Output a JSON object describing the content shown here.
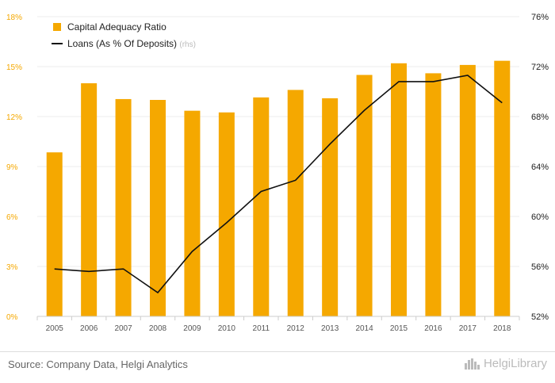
{
  "chart_data": {
    "type": "bar+line",
    "categories": [
      "2005",
      "2006",
      "2007",
      "2008",
      "2009",
      "2010",
      "2011",
      "2012",
      "2013",
      "2014",
      "2015",
      "2016",
      "2017",
      "2018"
    ],
    "series": [
      {
        "name": "Capital Adequacy Ratio",
        "type": "bar",
        "axis": "left",
        "color": "#f5a800",
        "values": [
          9.85,
          14.0,
          13.05,
          13.0,
          12.35,
          12.25,
          13.15,
          13.6,
          13.1,
          14.5,
          15.2,
          14.6,
          15.1,
          15.35
        ]
      },
      {
        "name": "Loans (As % Of Deposits)",
        "note": "(rhs)",
        "type": "line",
        "axis": "right",
        "color": "#111111",
        "values": [
          55.8,
          55.6,
          55.8,
          53.9,
          57.2,
          59.5,
          62.0,
          62.9,
          65.8,
          68.5,
          70.8,
          70.8,
          71.3,
          69.1
        ]
      }
    ],
    "left_axis": {
      "min": 0,
      "max": 18,
      "ticks": [
        "0%",
        "3%",
        "6%",
        "9%",
        "12%",
        "15%",
        "18%"
      ],
      "color": "#f5a800"
    },
    "right_axis": {
      "min": 52,
      "max": 76,
      "ticks": [
        "52%",
        "56%",
        "60%",
        "64%",
        "68%",
        "72%",
        "76%"
      ]
    },
    "grid": true,
    "legend_position": "top-left"
  },
  "footer": {
    "source": "Source: Company Data, Helgi Analytics",
    "brand": "HelgiLibrary"
  }
}
